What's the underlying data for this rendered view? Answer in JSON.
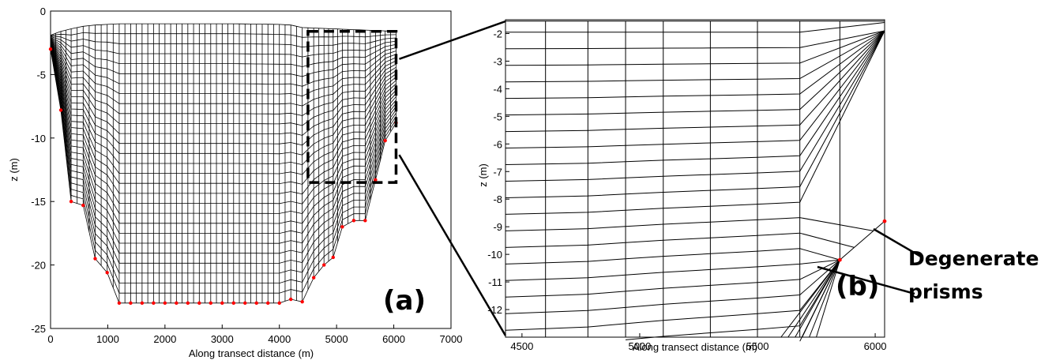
{
  "chart_data": [
    {
      "type": "line",
      "panel_label": "(a)",
      "xlabel": "Along transect distance (m)",
      "ylabel": "z (m)",
      "xlim": [
        0,
        7000
      ],
      "ylim": [
        -25,
        0
      ],
      "xticks": [
        0,
        1000,
        2000,
        3000,
        4000,
        5000,
        6000,
        7000
      ],
      "yticks": [
        0,
        -5,
        -10,
        -15,
        -20,
        -25
      ],
      "grid": "sigma-layer mesh",
      "layers": 28,
      "bathymetry": {
        "x": [
          0,
          180,
          360,
          570,
          780,
          990,
          1200,
          1400,
          1600,
          1800,
          2000,
          2200,
          2400,
          2600,
          2800,
          3000,
          3200,
          3400,
          3600,
          3800,
          4000,
          4200,
          4400,
          4600,
          4780,
          4940,
          5100,
          5300,
          5500,
          5680,
          5850,
          6040
        ],
        "z": [
          -3,
          -7.8,
          -15,
          -15.3,
          -19.5,
          -20.6,
          -23,
          -23,
          -23,
          -23,
          -23,
          -23,
          -23,
          -23,
          -23,
          -23,
          -23,
          -23,
          -23,
          -23,
          -23,
          -22.7,
          -22.9,
          -21,
          -20,
          -19.4,
          -17,
          -16.5,
          -16.5,
          -13.3,
          -10.2,
          -8.8
        ]
      },
      "surface": {
        "x": [
          0,
          180,
          360,
          570,
          780,
          990,
          1200,
          3200,
          4000,
          4200,
          4400,
          6040
        ],
        "z": [
          -1.9,
          -1.6,
          -1.4,
          -1.2,
          -1.1,
          -1.05,
          -1.0,
          -1.0,
          -1.05,
          -1.1,
          -1.3,
          -1.6
        ]
      },
      "zoom_box": {
        "x": [
          4500,
          6040
        ],
        "z": [
          -13.5,
          -1.6
        ]
      }
    },
    {
      "type": "line",
      "panel_label": "(b)",
      "xlabel": "Along transect distance (m)",
      "ylabel": "z (m)",
      "xlim": [
        4430,
        6040
      ],
      "ylim": [
        -13,
        -1.5
      ],
      "xticks": [
        4500,
        5000,
        5500,
        6000
      ],
      "yticks": [
        -2,
        -3,
        -4,
        -5,
        -6,
        -7,
        -8,
        -9,
        -10,
        -11,
        -12
      ],
      "vertical_lines_x": [
        4600,
        4780,
        4940,
        5100,
        5300,
        5500,
        5680,
        5850
      ],
      "top_surface": {
        "x": [
          4430,
          6040
        ],
        "z": [
          -1.55,
          -1.55
        ]
      },
      "bottom_nodes": {
        "x": [
          5850,
          6040
        ],
        "z": [
          -10.2,
          -8.8
        ]
      },
      "annotation": [
        "Degenerate",
        "prisms"
      ]
    }
  ],
  "colors": {
    "mesh": "#000000",
    "nodes": "#ff0000",
    "background": "#ffffff"
  }
}
